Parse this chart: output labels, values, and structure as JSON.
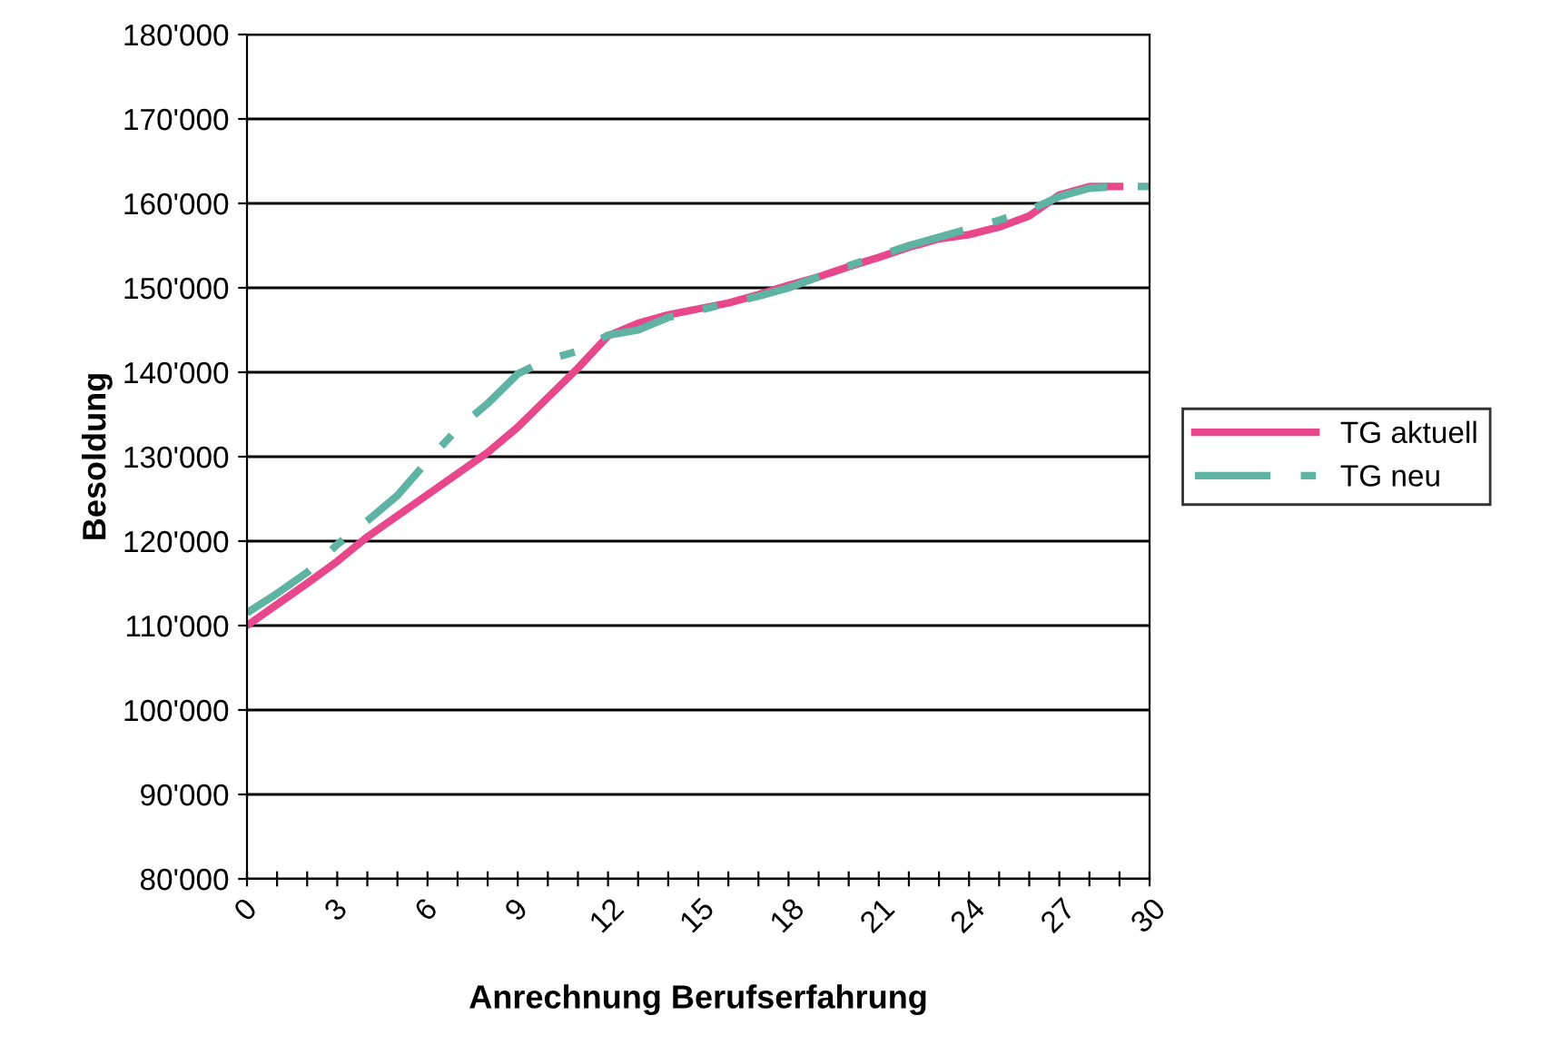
{
  "chart_data": {
    "type": "line",
    "xlabel": "Anrechnung Berufserfahrung",
    "ylabel": "Besoldung",
    "xlim": [
      0,
      30
    ],
    "xticks": [
      0,
      {
        "value": 1,
        "label": null
      },
      {
        "value": 2,
        "label": null
      },
      3,
      {
        "value": 4,
        "label": null
      },
      {
        "value": 5,
        "label": null
      },
      6,
      {
        "value": 7,
        "label": null
      },
      {
        "value": 8,
        "label": null
      },
      9,
      {
        "value": 10,
        "label": null
      },
      {
        "value": 11,
        "label": null
      },
      12,
      {
        "value": 13,
        "label": null
      },
      {
        "value": 14,
        "label": null
      },
      15,
      {
        "value": 16,
        "label": null
      },
      {
        "value": 17,
        "label": null
      },
      18,
      {
        "value": 19,
        "label": null
      },
      {
        "value": 20,
        "label": null
      },
      21,
      {
        "value": 22,
        "label": null
      },
      {
        "value": 23,
        "label": null
      },
      24,
      {
        "value": 25,
        "label": null
      },
      {
        "value": 26,
        "label": null
      },
      27,
      {
        "value": 28,
        "label": null
      },
      {
        "value": 29,
        "label": null
      },
      30
    ],
    "ylim": [
      80000,
      180000
    ],
    "yticks": [
      {
        "value": 80000,
        "label": "80'000"
      },
      {
        "value": 90000,
        "label": "90'000"
      },
      {
        "value": 100000,
        "label": "100'000"
      },
      {
        "value": 110000,
        "label": "110'000"
      },
      {
        "value": 120000,
        "label": "120'000"
      },
      {
        "value": 130000,
        "label": "130'000"
      },
      {
        "value": 140000,
        "label": "140'000"
      },
      {
        "value": 150000,
        "label": "150'000"
      },
      {
        "value": 160000,
        "label": "160'000"
      },
      {
        "value": 170000,
        "label": "170'000"
      },
      {
        "value": 180000,
        "label": "180'000"
      }
    ],
    "grid": "y",
    "legend": "right",
    "marker": "none",
    "series": [
      {
        "name": "TG aktuell",
        "color": "#e8478b",
        "line_style": "solid",
        "x": [
          0,
          1,
          2,
          3,
          4,
          5,
          6,
          7,
          8,
          9,
          10,
          11,
          12,
          13,
          14,
          15,
          16,
          17,
          18,
          19,
          20,
          21,
          22,
          23,
          24,
          25,
          26,
          27,
          28,
          29
        ],
        "values": [
          110000,
          112500,
          115000,
          117600,
          120500,
          123000,
          125500,
          128000,
          130500,
          133500,
          137000,
          140500,
          144300,
          145800,
          146800,
          147500,
          148200,
          149200,
          150300,
          151300,
          152500,
          153600,
          154800,
          155800,
          156300,
          157200,
          158500,
          161000,
          162000,
          162000
        ]
      },
      {
        "name": "TG neu",
        "color": "#5fb3a3",
        "line_style": "dashed",
        "x": [
          0,
          1,
          2,
          3,
          4,
          5,
          6,
          7,
          8,
          9,
          10,
          11,
          12,
          13,
          14,
          15,
          16,
          17,
          18,
          19,
          20,
          21,
          22,
          23,
          24,
          25,
          26,
          27,
          28,
          29,
          30
        ],
        "values": [
          111500,
          113800,
          116300,
          119600,
          122400,
          125400,
          129500,
          133300,
          136300,
          139800,
          141500,
          142500,
          144400,
          145000,
          146500,
          147300,
          148200,
          149000,
          150000,
          151300,
          152600,
          153800,
          155000,
          156000,
          157000,
          158000,
          159200,
          160800,
          161800,
          162000,
          162000
        ]
      }
    ]
  }
}
